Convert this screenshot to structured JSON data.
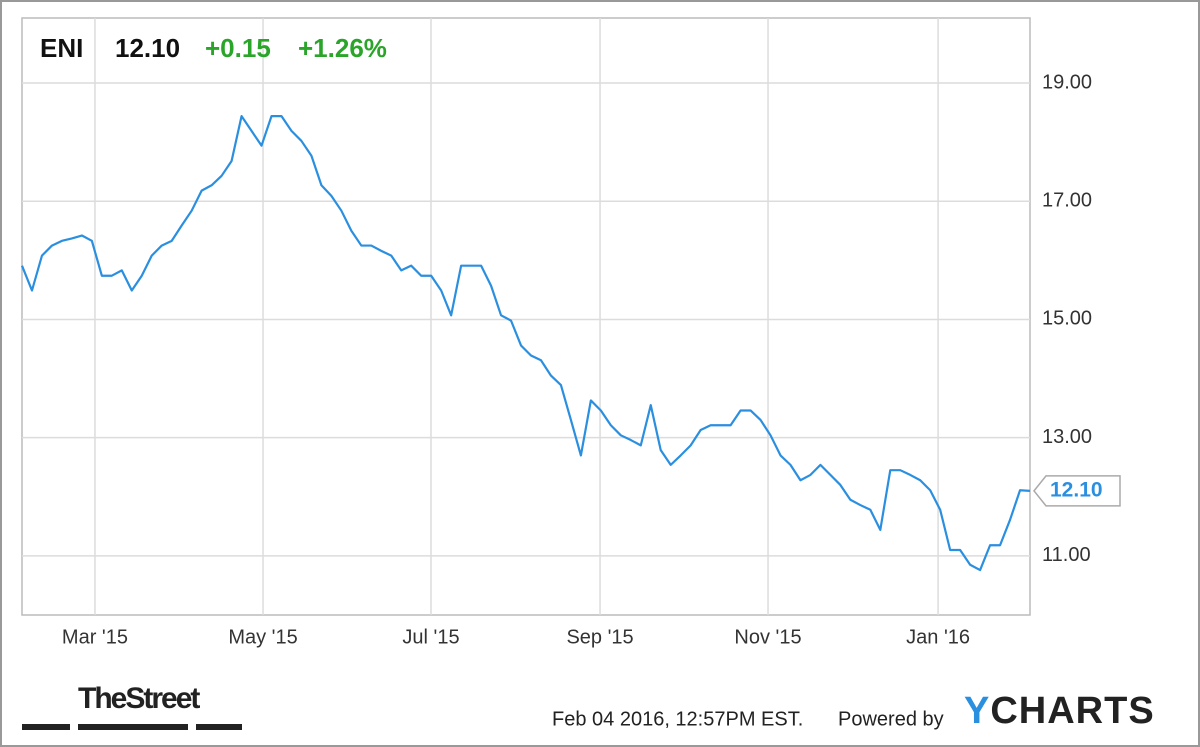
{
  "chart_data": {
    "type": "line",
    "header": {
      "ticker": "ENI",
      "price": "12.10",
      "change": "+0.15",
      "change_pct": "+1.26%"
    },
    "footer": {
      "brand": "TheStreet",
      "timestamp": "Feb 04 2016, 12:57PM EST.",
      "powered_by": "Powered by",
      "provider": "YCHARTS"
    },
    "series": [
      {
        "name": "ENI",
        "color": "#2b8fe0",
        "values": [
          15.91,
          15.49,
          16.08,
          16.25,
          16.33,
          16.37,
          16.42,
          16.33,
          15.74,
          15.74,
          15.83,
          15.49,
          15.74,
          16.08,
          16.25,
          16.33,
          16.59,
          16.84,
          17.18,
          17.27,
          17.43,
          17.68,
          18.44,
          18.19,
          17.94,
          18.44,
          18.44,
          18.19,
          18.02,
          17.77,
          17.27,
          17.09,
          16.84,
          16.5,
          16.25,
          16.25,
          16.16,
          16.08,
          15.83,
          15.91,
          15.74,
          15.74,
          15.49,
          15.07,
          15.91,
          15.91,
          15.91,
          15.57,
          15.07,
          14.98,
          14.56,
          14.39,
          14.31,
          14.05,
          13.89,
          13.3,
          12.7,
          13.63,
          13.46,
          13.21,
          13.04,
          12.96,
          12.87,
          13.55,
          12.79,
          12.54,
          12.7,
          12.87,
          13.13,
          13.21,
          13.21,
          13.21,
          13.46,
          13.46,
          13.3,
          13.04,
          12.7,
          12.54,
          12.28,
          12.37,
          12.54,
          12.37,
          12.2,
          11.95,
          11.86,
          11.78,
          11.44,
          12.45,
          12.45,
          12.37,
          12.28,
          12.11,
          11.78,
          11.1,
          11.1,
          10.85,
          10.76,
          11.18,
          11.18,
          11.61,
          12.11,
          12.1
        ]
      }
    ],
    "xlim": [
      0,
      101
    ],
    "xticks": [
      {
        "value": 7.31,
        "label": "Mar '15"
      },
      {
        "value": 24.15,
        "label": "May '15"
      },
      {
        "value": 40.98,
        "label": "Jul '15"
      },
      {
        "value": 57.92,
        "label": "Sep '15"
      },
      {
        "value": 74.75,
        "label": "Nov '15"
      },
      {
        "value": 91.79,
        "label": "Jan '16"
      }
    ],
    "ylim": [
      10,
      20.1
    ],
    "yticks": [
      {
        "value": 11,
        "label": "11.00"
      },
      {
        "value": 13,
        "label": "13.00"
      },
      {
        "value": 15,
        "label": "15.00"
      },
      {
        "value": 17,
        "label": "17.00"
      },
      {
        "value": 19,
        "label": "19.00"
      }
    ],
    "grid": true
  }
}
